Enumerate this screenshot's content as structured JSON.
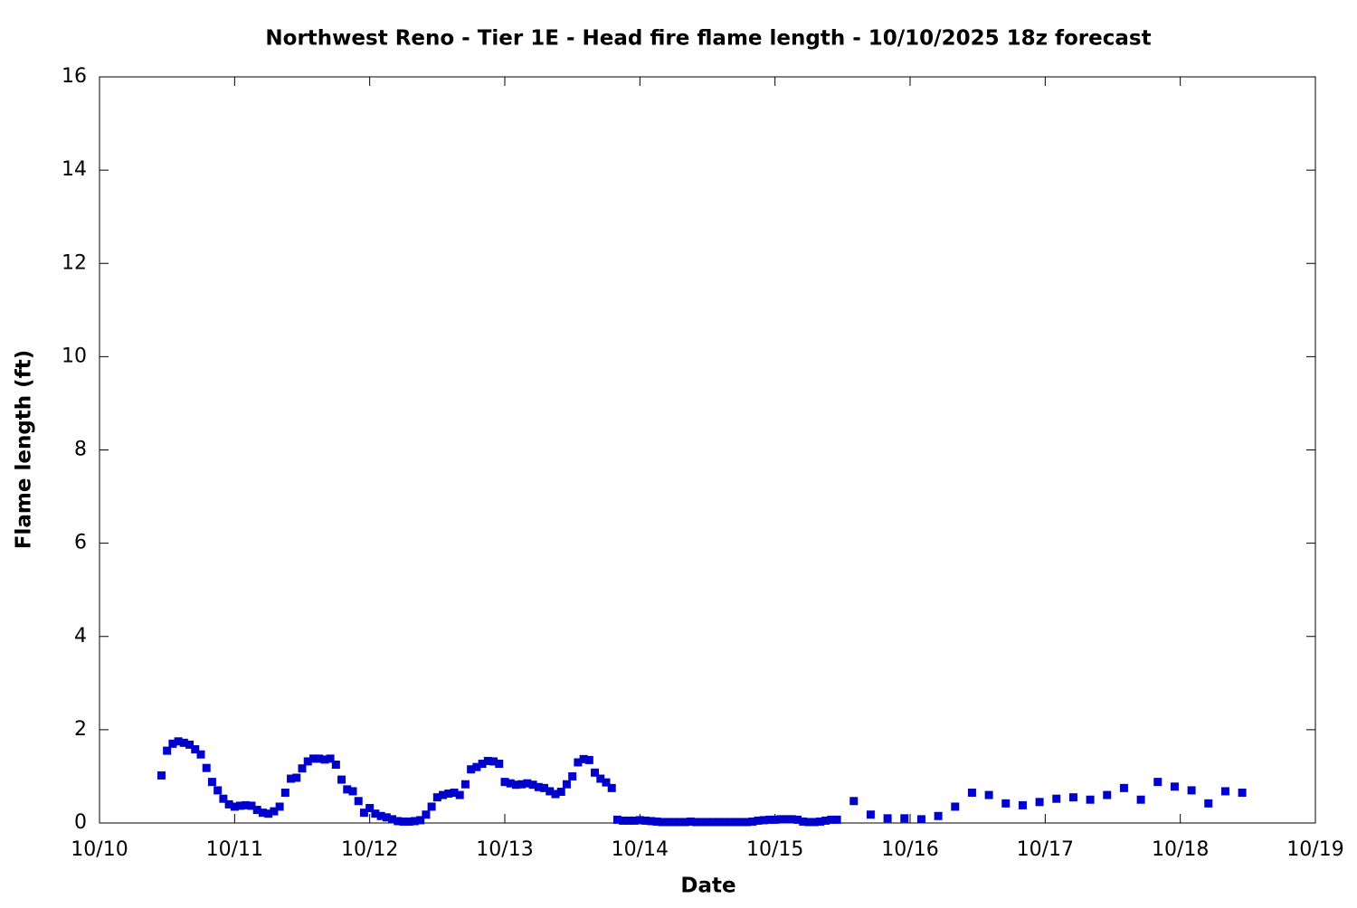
{
  "chart_data": {
    "type": "scatter",
    "title": "Northwest Reno - Tier 1E - Head fire flame length - 10/10/2025 18z forecast",
    "xlabel": "Date",
    "ylabel": "Flame length (ft)",
    "xlim": [
      0,
      216
    ],
    "xticks": [
      {
        "value": 0,
        "label": "10/10"
      },
      {
        "value": 24,
        "label": "10/11"
      },
      {
        "value": 48,
        "label": "10/12"
      },
      {
        "value": 72,
        "label": "10/13"
      },
      {
        "value": 96,
        "label": "10/14"
      },
      {
        "value": 120,
        "label": "10/15"
      },
      {
        "value": 144,
        "label": "10/16"
      },
      {
        "value": 168,
        "label": "10/17"
      },
      {
        "value": 192,
        "label": "10/18"
      },
      {
        "value": 216,
        "label": "10/19"
      }
    ],
    "ylim": [
      0,
      16
    ],
    "yticks": [
      0,
      2,
      4,
      6,
      8,
      10,
      12,
      14,
      16
    ],
    "color": "#0000cc",
    "x": [
      11,
      12,
      13,
      14,
      15,
      16,
      17,
      18,
      19,
      20,
      21,
      22,
      23,
      24,
      25,
      26,
      27,
      28,
      29,
      30,
      31,
      32,
      33,
      34,
      35,
      36,
      37,
      38,
      39,
      40,
      41,
      42,
      43,
      44,
      45,
      46,
      47,
      48,
      49,
      50,
      51,
      52,
      53,
      54,
      55,
      56,
      57,
      58,
      59,
      60,
      61,
      62,
      63,
      64,
      65,
      66,
      67,
      68,
      69,
      70,
      71,
      72,
      73,
      74,
      75,
      76,
      77,
      78,
      79,
      80,
      81,
      82,
      83,
      84,
      85,
      86,
      87,
      88,
      89,
      90,
      91,
      92,
      93,
      94,
      95,
      96,
      97,
      98,
      99,
      100,
      101,
      102,
      103,
      104,
      105,
      106,
      107,
      108,
      109,
      110,
      111,
      112,
      113,
      114,
      115,
      116,
      117,
      118,
      119,
      120,
      121,
      122,
      123,
      124,
      125,
      126,
      127,
      128,
      129,
      130,
      131,
      134,
      137,
      140,
      143,
      146,
      149,
      152,
      155,
      158,
      161,
      164,
      167,
      170,
      173,
      176,
      179,
      182,
      185,
      188,
      191,
      194,
      197,
      200,
      203
    ],
    "y": [
      1.02,
      1.55,
      1.7,
      1.75,
      1.72,
      1.68,
      1.58,
      1.47,
      1.18,
      0.88,
      0.7,
      0.52,
      0.4,
      0.35,
      0.37,
      0.38,
      0.37,
      0.28,
      0.22,
      0.2,
      0.25,
      0.35,
      0.65,
      0.95,
      0.97,
      1.17,
      1.32,
      1.38,
      1.38,
      1.36,
      1.38,
      1.25,
      0.93,
      0.72,
      0.68,
      0.47,
      0.22,
      0.32,
      0.2,
      0.15,
      0.12,
      0.08,
      0.04,
      0.03,
      0.03,
      0.04,
      0.06,
      0.18,
      0.35,
      0.55,
      0.6,
      0.63,
      0.65,
      0.6,
      0.83,
      1.15,
      1.2,
      1.27,
      1.33,
      1.32,
      1.27,
      0.88,
      0.85,
      0.82,
      0.83,
      0.85,
      0.82,
      0.77,
      0.75,
      0.68,
      0.62,
      0.67,
      0.83,
      1.0,
      1.3,
      1.37,
      1.35,
      1.08,
      0.95,
      0.87,
      0.75,
      0.07,
      0.05,
      0.05,
      0.05,
      0.06,
      0.05,
      0.04,
      0.03,
      0.02,
      0.02,
      0.02,
      0.02,
      0.02,
      0.03,
      0.02,
      0.02,
      0.02,
      0.02,
      0.02,
      0.02,
      0.02,
      0.02,
      0.02,
      0.02,
      0.03,
      0.05,
      0.06,
      0.07,
      0.07,
      0.08,
      0.08,
      0.08,
      0.07,
      0.03,
      0.02,
      0.02,
      0.03,
      0.05,
      0.07,
      0.07,
      0.47,
      0.18,
      0.1,
      0.1,
      0.08,
      0.15,
      0.35,
      0.65,
      0.6,
      0.42,
      0.38,
      0.45,
      0.52,
      0.55,
      0.5,
      0.6,
      0.75,
      0.5,
      0.88,
      0.78,
      0.7,
      0.42,
      0.68,
      0.65
    ]
  }
}
